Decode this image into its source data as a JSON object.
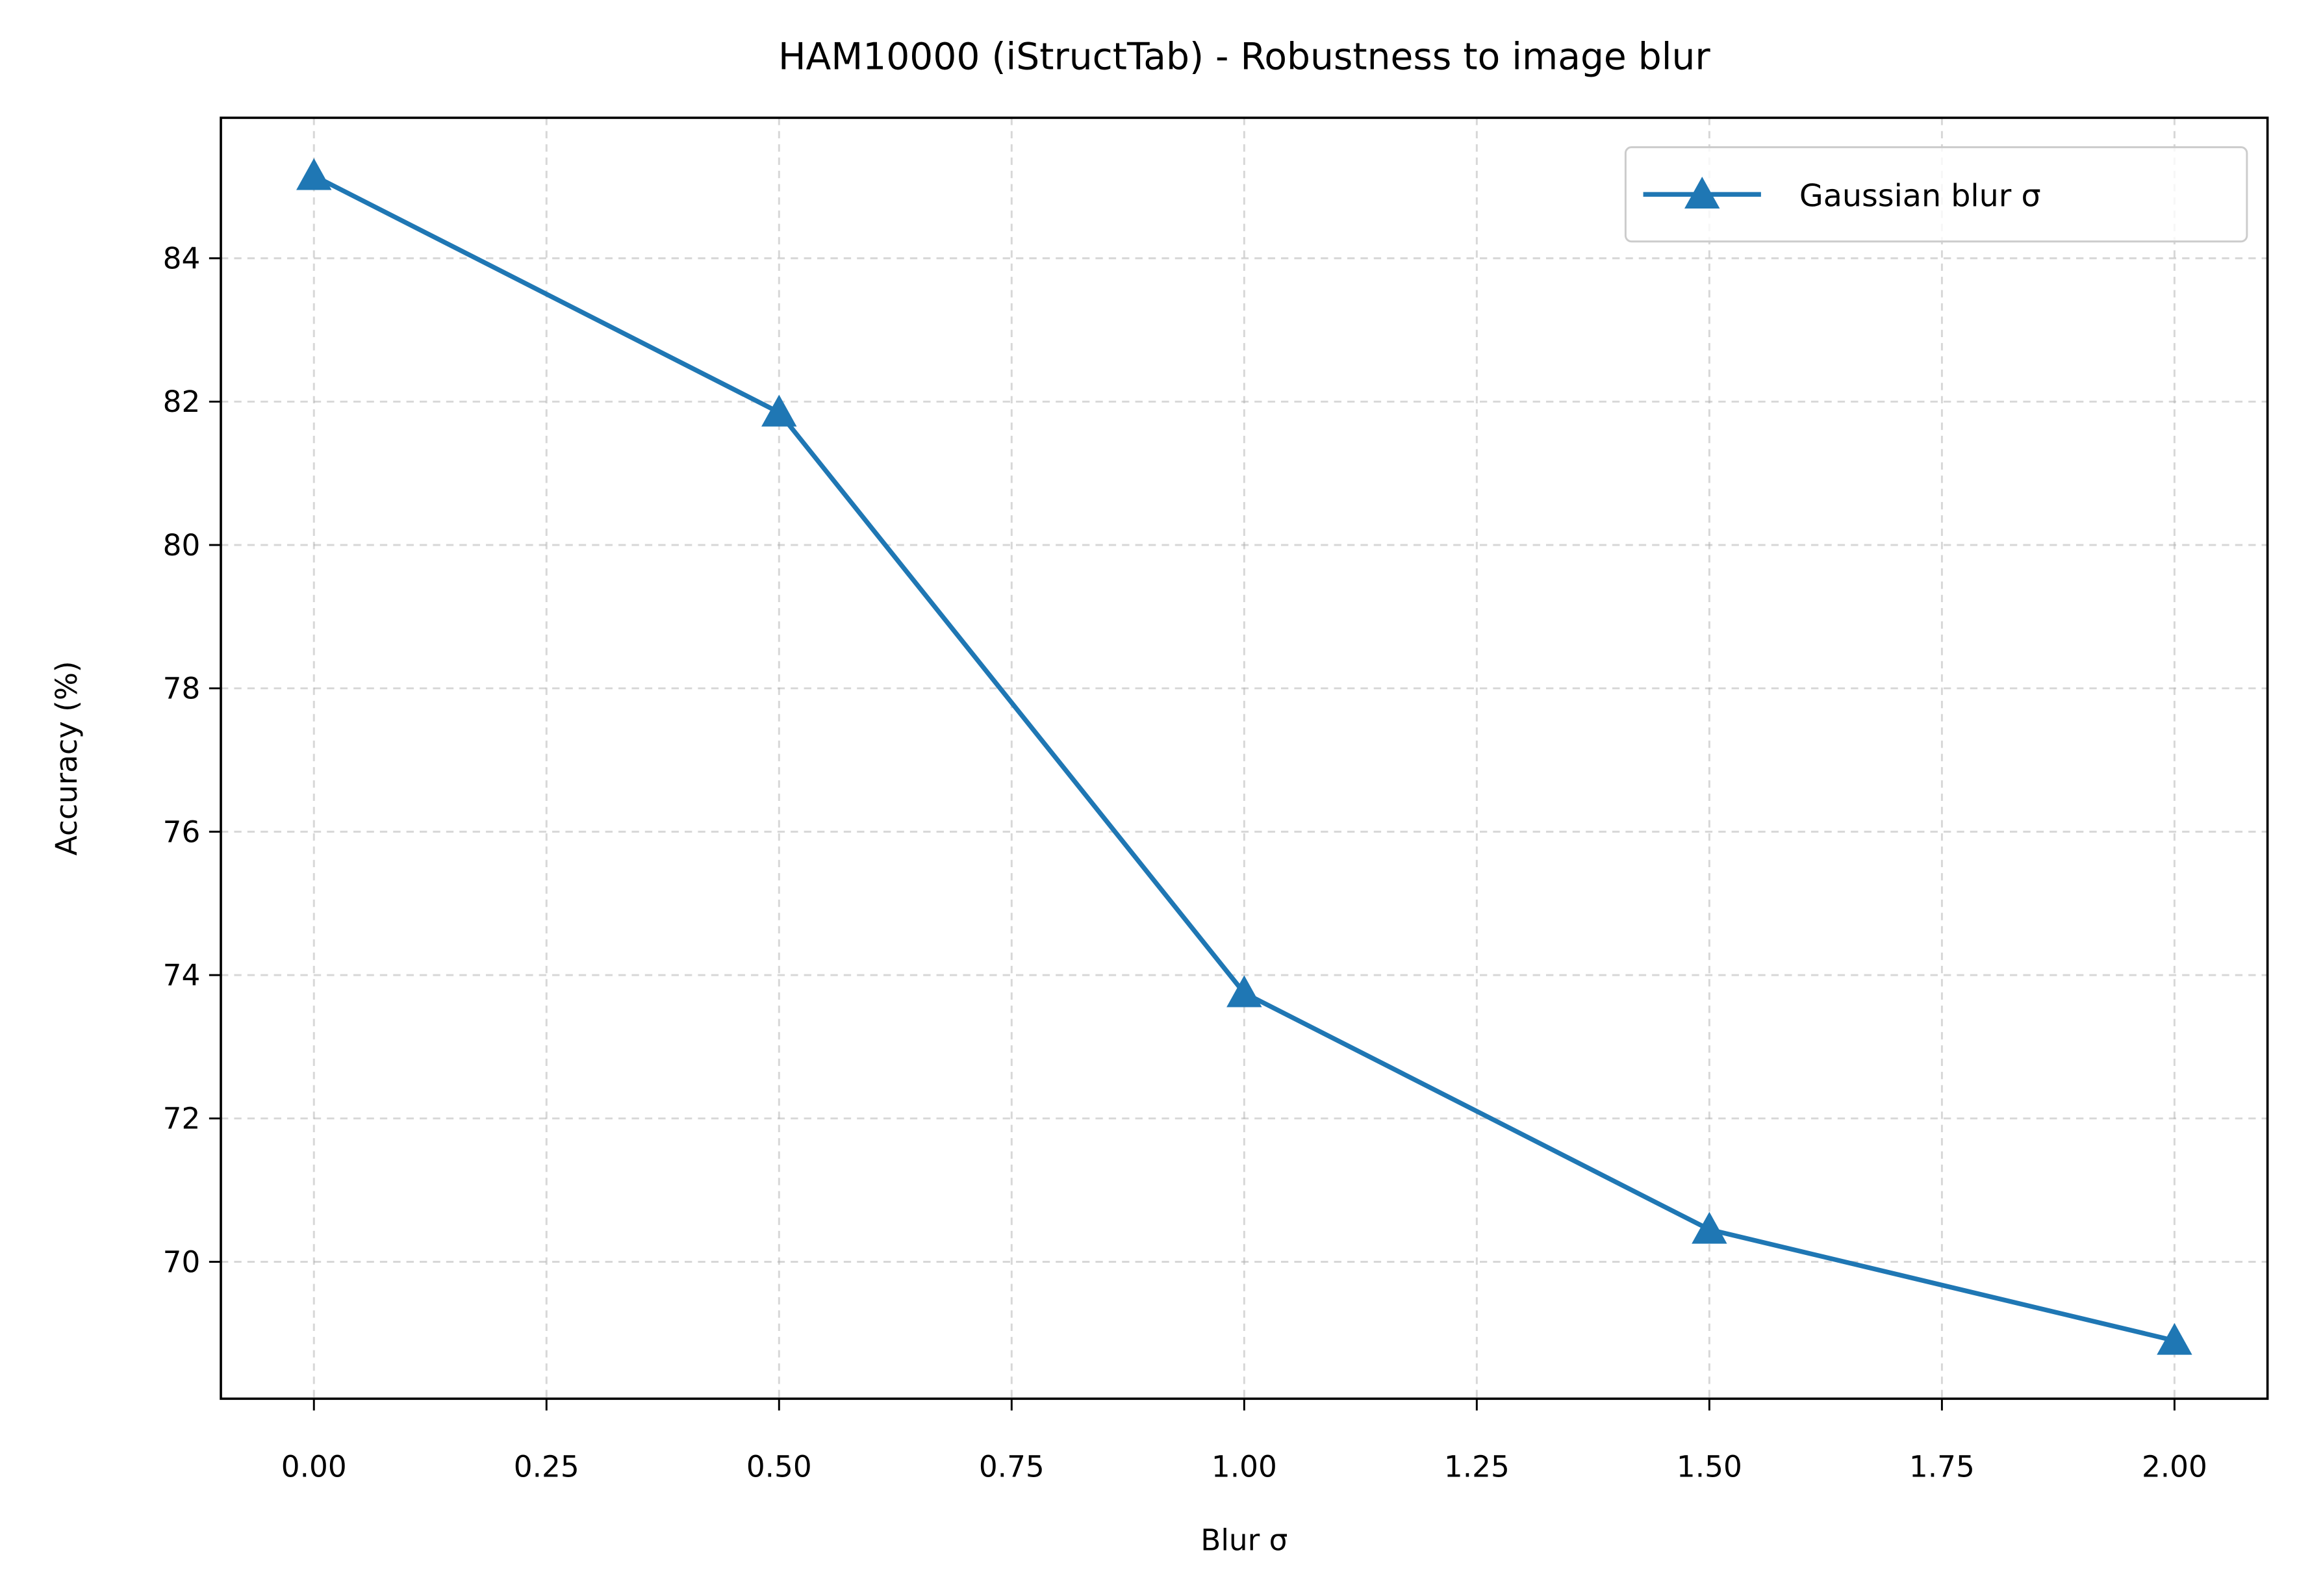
{
  "chart_data": {
    "type": "line",
    "title": "HAM10000 (iStructTab) - Robustness to image blur",
    "x_label": "Blur σ",
    "y_label": "Accuracy (%)",
    "x": [
      0,
      0.5,
      1,
      1.5,
      2
    ],
    "series": [
      {
        "name": "Gaussian blur σ",
        "color": "#1f77b4",
        "marker": "triangle",
        "values": [
          85.15,
          81.85,
          73.75,
          70.45,
          68.9
        ]
      }
    ],
    "xlim": [
      -0.1,
      2.1
    ],
    "xticks": [
      {
        "value": 0,
        "label": "0.00"
      },
      {
        "value": 0.25,
        "label": "0.25"
      },
      {
        "value": 0.5,
        "label": "0.50"
      },
      {
        "value": 0.75,
        "label": "0.75"
      },
      {
        "value": 1,
        "label": "1.00"
      },
      {
        "value": 1.25,
        "label": "1.25"
      },
      {
        "value": 1.5,
        "label": "1.50"
      },
      {
        "value": 1.75,
        "label": "1.75"
      },
      {
        "value": 2,
        "label": "2.00"
      }
    ],
    "ylim": [
      68.09,
      85.96
    ],
    "yticks": [
      70,
      72,
      74,
      76,
      78,
      80,
      82,
      84
    ],
    "grid": true,
    "legend": "upper right"
  }
}
